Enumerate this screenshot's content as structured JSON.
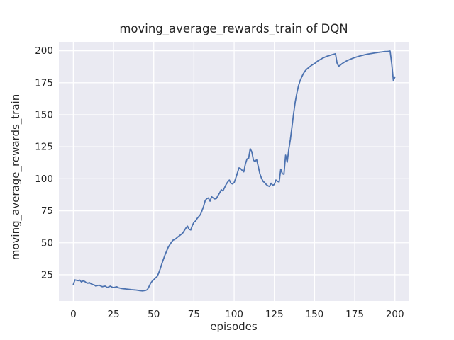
{
  "figure": {
    "background_color": "#ffffff"
  },
  "chart_data": {
    "type": "line",
    "title": "moving_average_rewards_train of DQN",
    "xlabel": "episodes",
    "ylabel": "moving_average_rewards_train",
    "grid": true,
    "legend_position": "none",
    "xticks": [
      0,
      25,
      50,
      75,
      100,
      125,
      150,
      175,
      200
    ],
    "yticks": [
      25,
      50,
      75,
      100,
      125,
      150,
      175,
      200
    ],
    "xlim": [
      -9,
      208.5
    ],
    "ylim": [
      4.5,
      207
    ],
    "colors": {
      "line": "#4c72b0",
      "plot_bg": "#eaeaf2",
      "grid": "#ffffff",
      "text": "#262626"
    },
    "x": [
      0,
      1,
      2,
      3,
      4,
      5,
      6,
      7,
      8,
      9,
      10,
      11,
      12,
      13,
      14,
      15,
      16,
      17,
      18,
      19,
      20,
      21,
      22,
      23,
      24,
      25,
      26,
      27,
      28,
      29,
      30,
      31,
      32,
      33,
      34,
      35,
      36,
      37,
      38,
      39,
      40,
      41,
      42,
      43,
      44,
      45,
      46,
      47,
      48,
      49,
      50,
      51,
      52,
      53,
      54,
      55,
      56,
      57,
      58,
      59,
      60,
      61,
      62,
      63,
      64,
      65,
      66,
      67,
      68,
      69,
      70,
      71,
      72,
      73,
      74,
      75,
      76,
      77,
      78,
      79,
      80,
      81,
      82,
      83,
      84,
      85,
      86,
      87,
      88,
      89,
      90,
      91,
      92,
      93,
      94,
      95,
      96,
      97,
      98,
      99,
      100,
      101,
      102,
      103,
      104,
      105,
      106,
      107,
      108,
      109,
      110,
      111,
      112,
      113,
      114,
      115,
      116,
      117,
      118,
      119,
      120,
      121,
      122,
      123,
      124,
      125,
      126,
      127,
      128,
      129,
      130,
      131,
      132,
      133,
      134,
      135,
      136,
      137,
      138,
      139,
      140,
      141,
      142,
      143,
      144,
      145,
      146,
      147,
      148,
      149,
      150,
      151,
      152,
      153,
      154,
      155,
      156,
      157,
      158,
      159,
      160,
      161,
      162,
      163,
      164,
      165,
      166,
      167,
      168,
      169,
      170,
      171,
      172,
      173,
      174,
      175,
      176,
      177,
      178,
      179,
      180,
      181,
      182,
      183,
      184,
      185,
      186,
      187,
      188,
      189,
      190,
      191,
      192,
      193,
      194,
      195,
      196,
      197,
      198,
      199,
      200
    ],
    "series": [
      {
        "name": "moving_average_rewards_train",
        "values": [
          17.5,
          21.0,
          20.7,
          20.4,
          20.8,
          19.4,
          20.2,
          19.8,
          18.9,
          18.4,
          18.9,
          18.0,
          17.4,
          17.0,
          16.2,
          16.6,
          16.9,
          16.3,
          15.7,
          16.0,
          16.1,
          15.0,
          15.5,
          16.1,
          15.4,
          15.0,
          15.3,
          15.6,
          14.9,
          14.6,
          14.3,
          14.1,
          14.0,
          13.8,
          13.7,
          13.6,
          13.4,
          13.3,
          13.2,
          13.1,
          12.9,
          12.7,
          12.5,
          12.4,
          12.6,
          12.8,
          13.4,
          15.6,
          18.3,
          20.0,
          21.1,
          22.5,
          23.5,
          26.0,
          29.5,
          33.5,
          37.0,
          40.5,
          43.5,
          46.5,
          48.5,
          50.5,
          52.0,
          52.5,
          53.5,
          54.5,
          55.5,
          56.5,
          57.5,
          59.5,
          61.5,
          63.0,
          60.5,
          60.0,
          63.5,
          66.0,
          67.0,
          69.0,
          70.5,
          72.0,
          75.0,
          78.5,
          83.0,
          84.5,
          85.0,
          82.5,
          86.0,
          85.0,
          84.3,
          84.6,
          87.0,
          89.0,
          91.5,
          90.5,
          93.0,
          95.5,
          97.5,
          99.0,
          96.5,
          96.0,
          97.0,
          100.5,
          104.5,
          108.5,
          108.0,
          106.5,
          105.5,
          111.5,
          115.5,
          116.0,
          123.5,
          121.0,
          114.5,
          113.5,
          115.0,
          109.5,
          104.0,
          100.5,
          98.0,
          97.0,
          95.5,
          94.5,
          94.0,
          96.5,
          95.0,
          95.5,
          99.0,
          98.0,
          97.5,
          107.5,
          104.0,
          103.5,
          118.5,
          113.0,
          123.0,
          131.0,
          141.0,
          151.0,
          160.0,
          167.0,
          172.5,
          176.5,
          179.5,
          182.0,
          184.0,
          185.5,
          186.5,
          187.5,
          188.5,
          189.3,
          190.0,
          191.0,
          192.0,
          192.8,
          193.5,
          194.2,
          194.8,
          195.3,
          195.8,
          196.2,
          196.6,
          197.0,
          197.3,
          197.7,
          190.5,
          187.9,
          188.8,
          189.8,
          190.7,
          191.4,
          192.1,
          192.7,
          193.3,
          193.8,
          194.3,
          194.7,
          195.1,
          195.5,
          195.9,
          196.2,
          196.5,
          196.8,
          197.1,
          197.4,
          197.6,
          197.8,
          198.0,
          198.2,
          198.4,
          198.6,
          198.8,
          199.0,
          199.1,
          199.3,
          199.4,
          199.5,
          199.6,
          199.8,
          190.0,
          176.8,
          179.5
        ]
      }
    ]
  }
}
